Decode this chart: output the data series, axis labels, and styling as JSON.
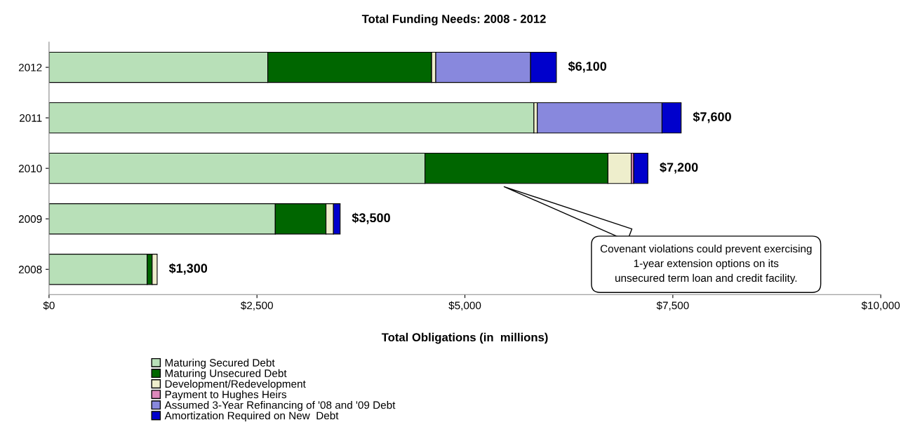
{
  "chart_data": {
    "type": "bar",
    "orientation": "horizontal",
    "stacked": true,
    "title": "Total Funding Needs: 2008 - 2012",
    "xlabel": "Total Obligations (in  millions)",
    "categories": [
      "2012",
      "2011",
      "2010",
      "2009",
      "2008"
    ],
    "series": [
      {
        "name": "Maturing Secured Debt",
        "color": "#b8e0b8",
        "values": [
          2630,
          5830,
          4520,
          2720,
          1180
        ]
      },
      {
        "name": "Maturing Unsecured Debt",
        "color": "#006600",
        "values": [
          1970,
          null,
          2200,
          610,
          60
        ]
      },
      {
        "name": "Development/Redevelopment",
        "color": "#eeeecc",
        "values": [
          50,
          40,
          280,
          90,
          60
        ]
      },
      {
        "name": "Payment to Hughes Heirs",
        "color": "#dd88bb",
        "values": [
          null,
          null,
          30,
          null,
          null
        ]
      },
      {
        "name": "Assumed 3-Year Refinancing of '08 and '09 Debt",
        "color": "#8888dd",
        "values": [
          1140,
          1500,
          null,
          null,
          null
        ]
      },
      {
        "name": "Amortization Required on New  Debt",
        "color": "#0000cc",
        "values": [
          310,
          230,
          170,
          80,
          null
        ]
      }
    ],
    "totals": [
      "$6,100",
      "$7,600",
      "$7,200",
      "$3,500",
      "$1,300"
    ],
    "xlim": [
      0,
      10000
    ],
    "xticks": [
      {
        "value": 0,
        "label": "$0"
      },
      {
        "value": 2500,
        "label": "$2,500"
      },
      {
        "value": 5000,
        "label": "$5,000"
      },
      {
        "value": 7500,
        "label": "$7,500"
      },
      {
        "value": 10000,
        "label": "$10,000"
      }
    ],
    "annotations": [
      "Covenant violations could prevent exercising\n1-year extension options on its\nunsecured term loan and credit facility."
    ],
    "legend": "bottom",
    "grid": false
  }
}
